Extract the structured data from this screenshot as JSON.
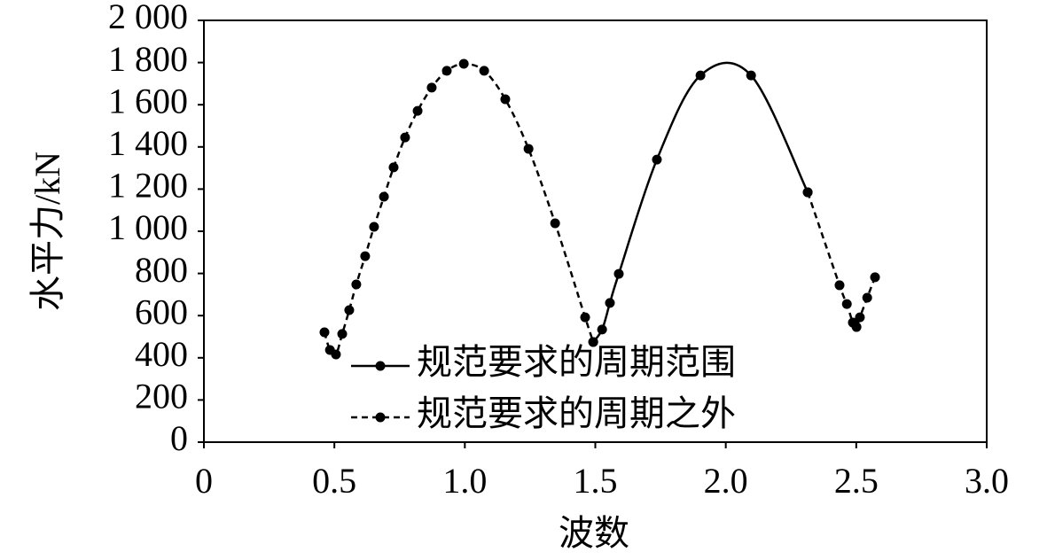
{
  "chart_data": {
    "type": "line",
    "x_label": "波数",
    "y_label": "水平力/kN",
    "xlim": [
      0,
      3
    ],
    "ylim": [
      0,
      2000
    ],
    "xticks": [
      0,
      0.5,
      {
        "value": 1,
        "label": "1.0"
      },
      1.5,
      {
        "value": 2,
        "label": "2.0"
      },
      2.5,
      {
        "value": 3,
        "label": "3.0"
      }
    ],
    "yticks": [
      0,
      200,
      400,
      600,
      800,
      {
        "value": 1000,
        "label": "1 000"
      },
      {
        "value": 1200,
        "label": "1 200"
      },
      {
        "value": 1400,
        "label": "1 400"
      },
      {
        "value": 1600,
        "label": "1 600"
      },
      {
        "value": 1800,
        "label": "1 800"
      },
      {
        "value": 2000,
        "label": "2 000"
      }
    ],
    "grid": false,
    "legend": "bottom",
    "series": [
      {
        "name": "规范要求的周期范围",
        "color": "#000000",
        "dash": false,
        "x": [
          1.492,
          1.526,
          1.556,
          1.59,
          1.736,
          1.903,
          2.097,
          2.314
        ],
        "values": [
          475,
          534,
          660,
          798,
          1340,
          1739,
          1739,
          1185
        ]
      },
      {
        "name": "规范要求的周期之外",
        "color": "#000000",
        "dash": true,
        "x": [
          0.462,
          0.483,
          0.506,
          0.53,
          0.557,
          0.584,
          0.618,
          0.652,
          0.69,
          0.727,
          0.771,
          0.819,
          0.873,
          0.931,
          0.996,
          1.074,
          1.155,
          1.244,
          1.346,
          1.461,
          1.492,
          null,
          2.314,
          2.436,
          2.464,
          2.487,
          2.501,
          2.514,
          2.542,
          2.572
        ],
        "values": [
          521,
          437,
          416,
          513,
          626,
          748,
          882,
          1021,
          1164,
          1303,
          1445,
          1571,
          1681,
          1761,
          1794,
          1761,
          1626,
          1391,
          1038,
          592,
          475,
          null,
          1185,
          744,
          655,
          567,
          546,
          592,
          685,
          782
        ]
      }
    ]
  }
}
